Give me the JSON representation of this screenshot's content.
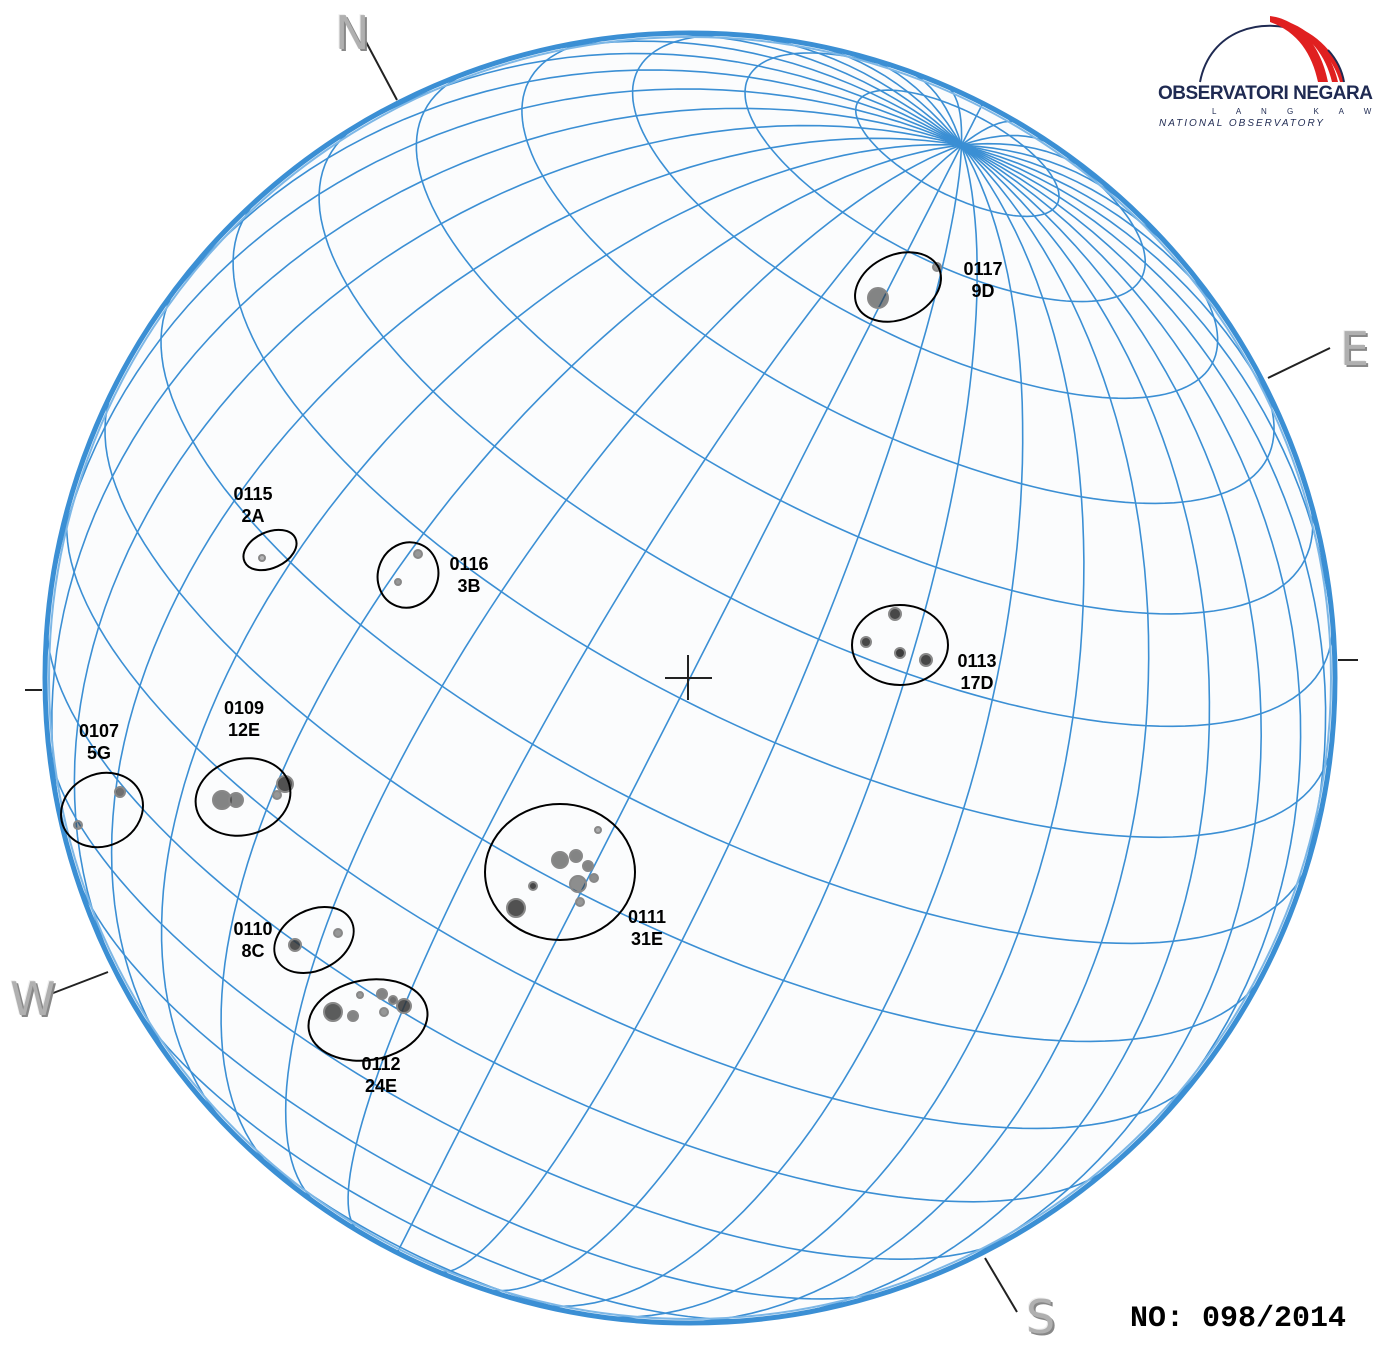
{
  "logo": {
    "name": "OBSERVATORI NEGARA",
    "location": "L A N G K A W I",
    "subtitle": "NATIONAL OBSERVATORY",
    "colors": {
      "red": "#e02020",
      "navy": "#1f2a52"
    }
  },
  "report_number": "NO: 098/2014",
  "directions": {
    "north": "N",
    "south": "S",
    "east": "E",
    "west": "W"
  },
  "grid_color": "#3b8fd4",
  "groups": [
    {
      "id": "0107",
      "class": "5G"
    },
    {
      "id": "0109",
      "class": "12E"
    },
    {
      "id": "0110",
      "class": "8C"
    },
    {
      "id": "0111",
      "class": "31E"
    },
    {
      "id": "0112",
      "class": "24E"
    },
    {
      "id": "0113",
      "class": "17D"
    },
    {
      "id": "0115",
      "class": "2A"
    },
    {
      "id": "0116",
      "class": "3B"
    },
    {
      "id": "0117",
      "class": "9D"
    }
  ]
}
